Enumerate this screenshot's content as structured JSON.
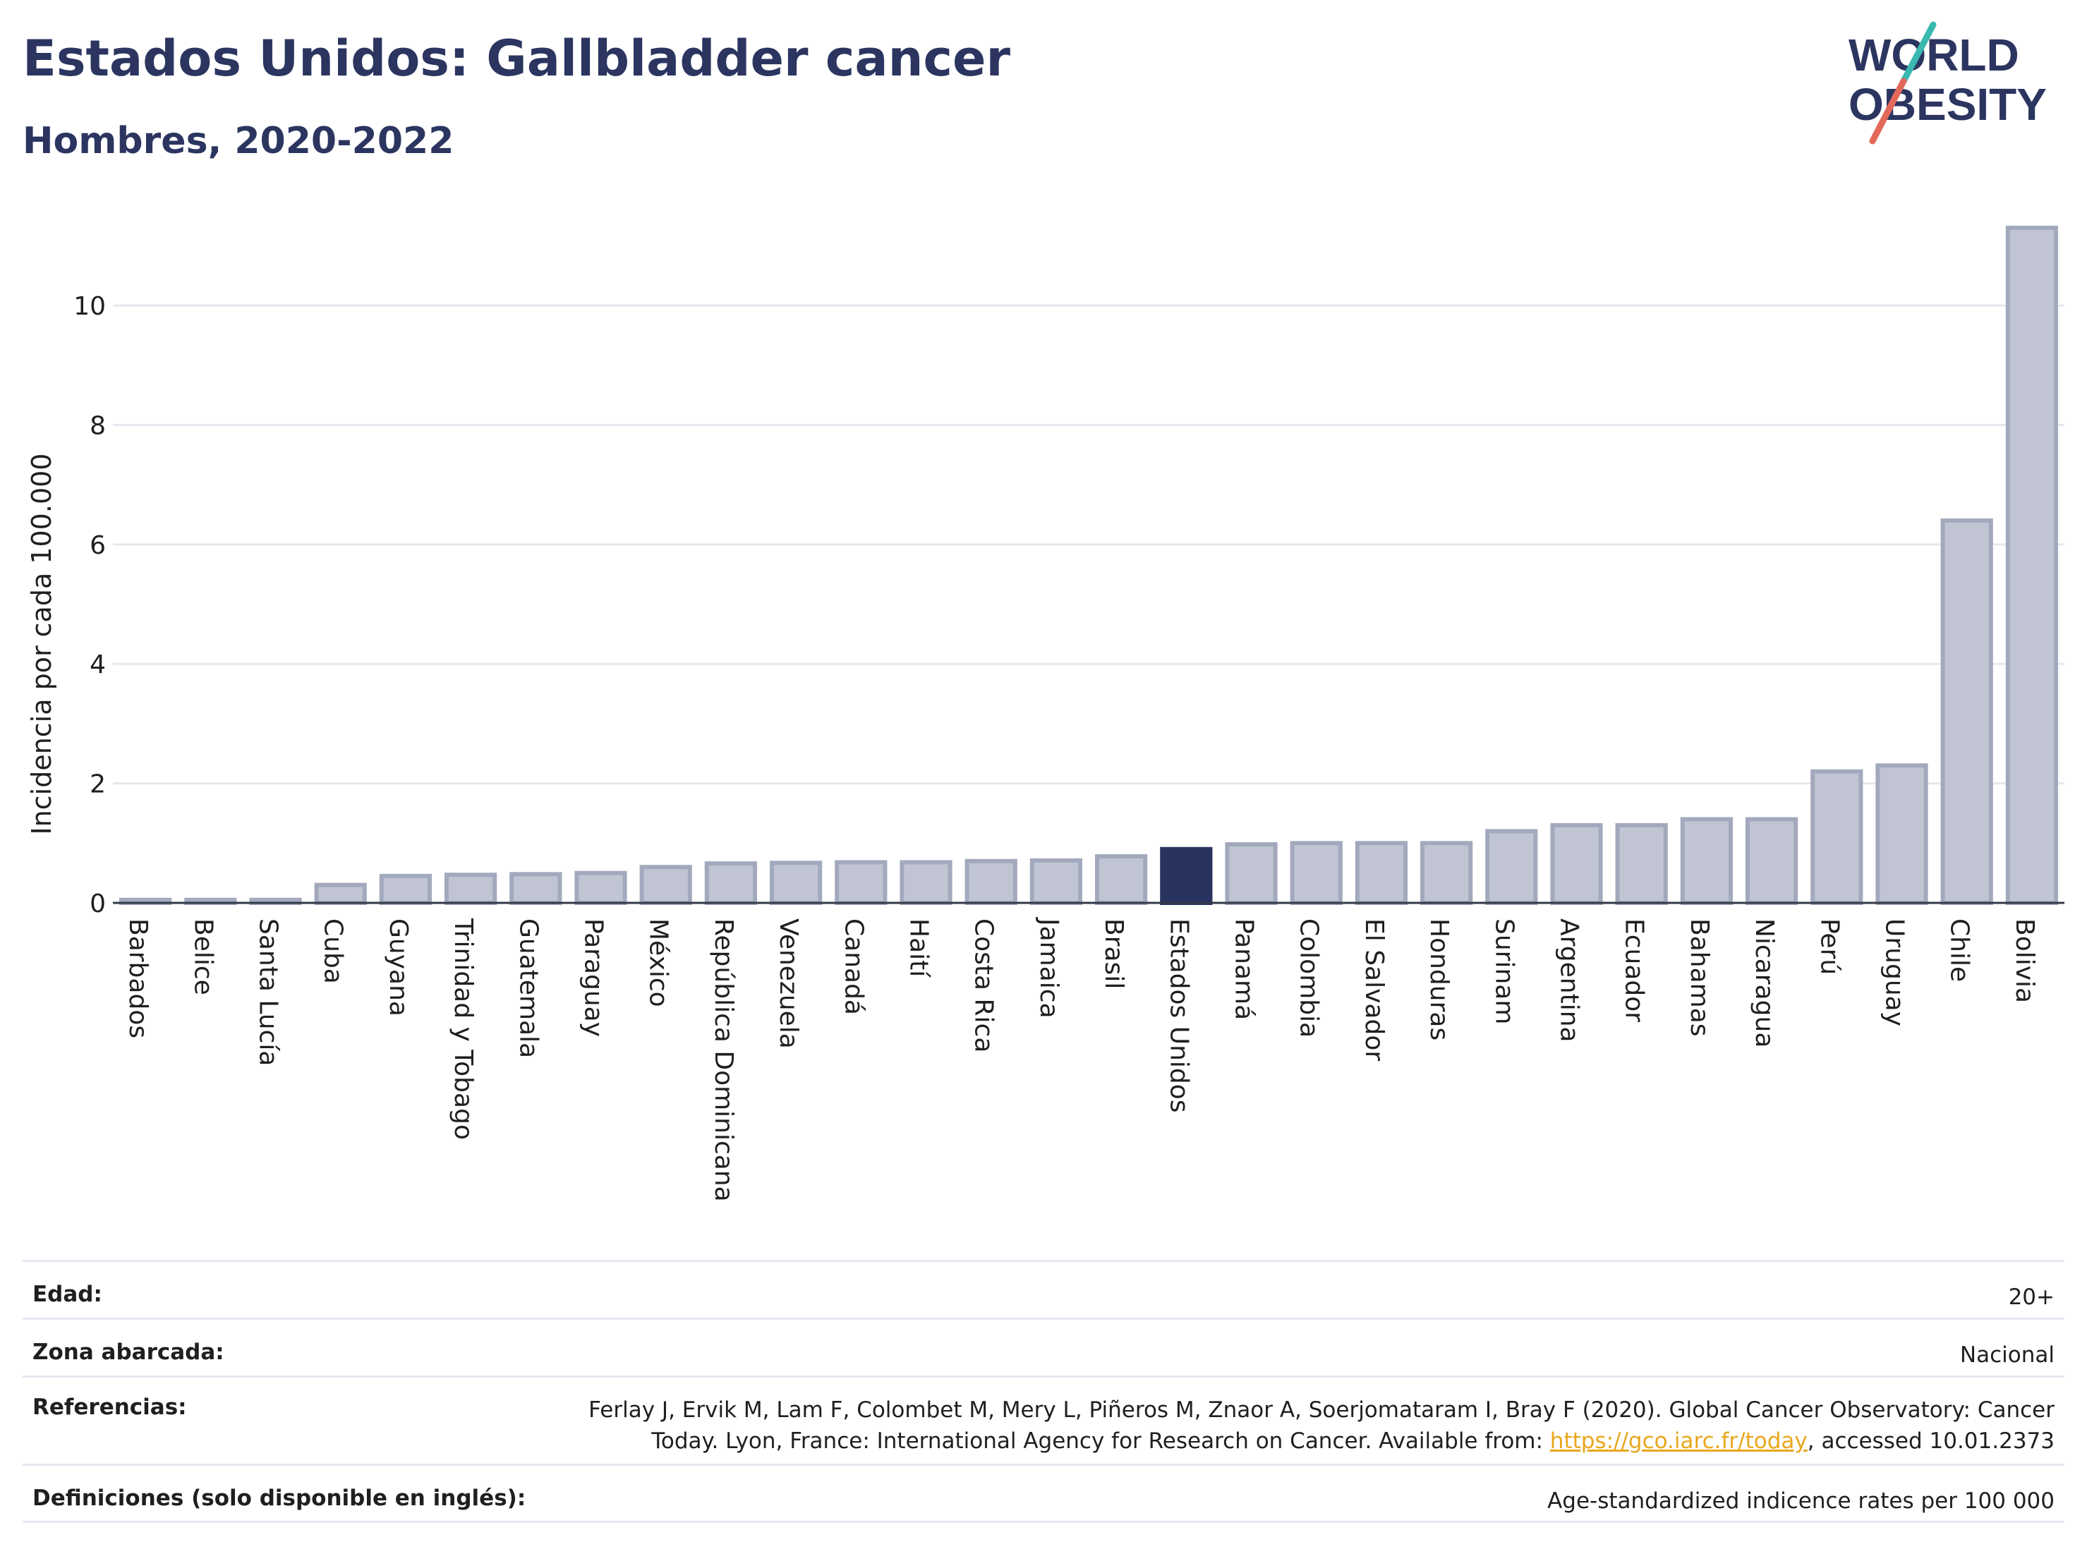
{
  "header": {
    "title": "Estados Unidos: Gallbladder cancer",
    "subtitle": "Hombres, 2020-2022"
  },
  "logo": {
    "line1": "WORLD",
    "line2": "OBESITY"
  },
  "colors": {
    "highlight": "#28335f",
    "bar": "#c1c5d3",
    "bar_stroke": "#a3a9bd",
    "title": "#2b3560"
  },
  "chart_data": {
    "type": "bar",
    "title": "Estados Unidos: Gallbladder cancer",
    "subtitle": "Hombres, 2020-2022",
    "xlabel": "",
    "ylabel": "Incidencia por cada 100.000",
    "ylim": [
      0,
      11.5
    ],
    "yticks": [
      0,
      2,
      4,
      6,
      8,
      10
    ],
    "grid": true,
    "highlight": "Estados Unidos",
    "categories": [
      "Barbados",
      "Belice",
      "Santa Lucía",
      "Cuba",
      "Guyana",
      "Trinidad y Tobago",
      "Guatemala",
      "Paraguay",
      "México",
      "República Dominicana",
      "Venezuela",
      "Canadá",
      "Haití",
      "Costa Rica",
      "Jamaica",
      "Brasil",
      "Estados Unidos",
      "Panamá",
      "Colombia",
      "El Salvador",
      "Honduras",
      "Surinam",
      "Argentina",
      "Ecuador",
      "Bahamas",
      "Nicaragua",
      "Perú",
      "Uruguay",
      "Chile",
      "Bolivia"
    ],
    "values": [
      0.05,
      0.05,
      0.05,
      0.3,
      0.45,
      0.47,
      0.48,
      0.5,
      0.6,
      0.66,
      0.67,
      0.68,
      0.68,
      0.7,
      0.71,
      0.78,
      0.9,
      0.98,
      1.0,
      1.0,
      1.0,
      1.2,
      1.3,
      1.3,
      1.4,
      1.4,
      2.2,
      2.3,
      6.4,
      11.3
    ]
  },
  "meta": {
    "age_label": "Edad:",
    "age_value": "20+",
    "area_label": "Zona abarcada:",
    "area_value": "Nacional",
    "refs_label": "Referencias:",
    "refs_line1": "Ferlay J, Ervik M, Lam F, Colombet M, Mery L, Piñeros M, Znaor A, Soerjomataram I, Bray F (2020). Global Cancer Observatory: Cancer",
    "refs_line2_pre": "Today. Lyon, France: International Agency for Research on Cancer. Available from: ",
    "refs_link": "https://gco.iarc.fr/today",
    "refs_line2_post": ", accessed 10.01.2373",
    "defs_label": "Definiciones (solo disponible en inglés):",
    "defs_value": "Age-standardized indicence rates per 100 000"
  }
}
